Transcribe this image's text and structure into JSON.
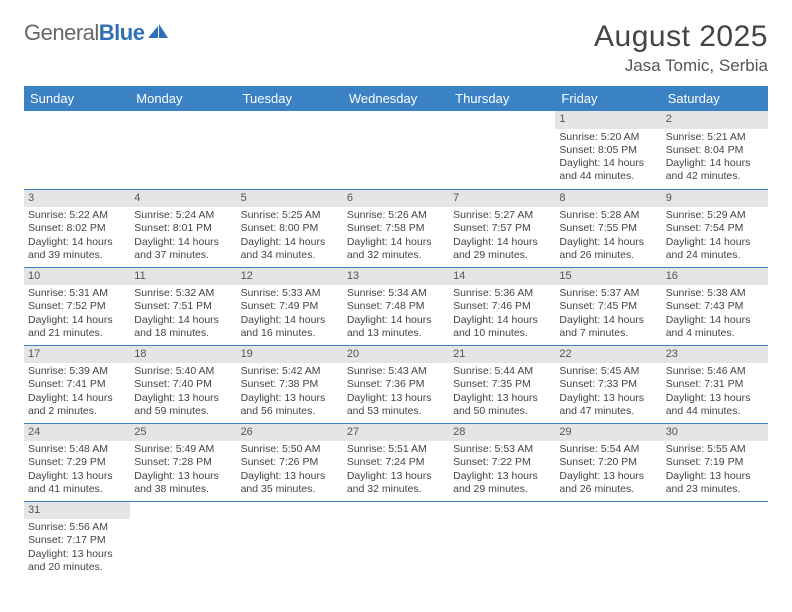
{
  "logo": {
    "text1": "General",
    "text2": "Blue"
  },
  "title": "August 2025",
  "location": "Jasa Tomic, Serbia",
  "colors": {
    "header_bg": "#3b82c4",
    "header_text": "#ffffff",
    "daynum_bg": "#e5e5e5",
    "border": "#3b82c4",
    "logo_blue": "#2e6fb5",
    "text": "#444444"
  },
  "weekdays": [
    "Sunday",
    "Monday",
    "Tuesday",
    "Wednesday",
    "Thursday",
    "Friday",
    "Saturday"
  ],
  "grid": [
    [
      null,
      null,
      null,
      null,
      null,
      {
        "n": "1",
        "sr": "Sunrise: 5:20 AM",
        "ss": "Sunset: 8:05 PM",
        "d1": "Daylight: 14 hours",
        "d2": "and 44 minutes."
      },
      {
        "n": "2",
        "sr": "Sunrise: 5:21 AM",
        "ss": "Sunset: 8:04 PM",
        "d1": "Daylight: 14 hours",
        "d2": "and 42 minutes."
      }
    ],
    [
      {
        "n": "3",
        "sr": "Sunrise: 5:22 AM",
        "ss": "Sunset: 8:02 PM",
        "d1": "Daylight: 14 hours",
        "d2": "and 39 minutes."
      },
      {
        "n": "4",
        "sr": "Sunrise: 5:24 AM",
        "ss": "Sunset: 8:01 PM",
        "d1": "Daylight: 14 hours",
        "d2": "and 37 minutes."
      },
      {
        "n": "5",
        "sr": "Sunrise: 5:25 AM",
        "ss": "Sunset: 8:00 PM",
        "d1": "Daylight: 14 hours",
        "d2": "and 34 minutes."
      },
      {
        "n": "6",
        "sr": "Sunrise: 5:26 AM",
        "ss": "Sunset: 7:58 PM",
        "d1": "Daylight: 14 hours",
        "d2": "and 32 minutes."
      },
      {
        "n": "7",
        "sr": "Sunrise: 5:27 AM",
        "ss": "Sunset: 7:57 PM",
        "d1": "Daylight: 14 hours",
        "d2": "and 29 minutes."
      },
      {
        "n": "8",
        "sr": "Sunrise: 5:28 AM",
        "ss": "Sunset: 7:55 PM",
        "d1": "Daylight: 14 hours",
        "d2": "and 26 minutes."
      },
      {
        "n": "9",
        "sr": "Sunrise: 5:29 AM",
        "ss": "Sunset: 7:54 PM",
        "d1": "Daylight: 14 hours",
        "d2": "and 24 minutes."
      }
    ],
    [
      {
        "n": "10",
        "sr": "Sunrise: 5:31 AM",
        "ss": "Sunset: 7:52 PM",
        "d1": "Daylight: 14 hours",
        "d2": "and 21 minutes."
      },
      {
        "n": "11",
        "sr": "Sunrise: 5:32 AM",
        "ss": "Sunset: 7:51 PM",
        "d1": "Daylight: 14 hours",
        "d2": "and 18 minutes."
      },
      {
        "n": "12",
        "sr": "Sunrise: 5:33 AM",
        "ss": "Sunset: 7:49 PM",
        "d1": "Daylight: 14 hours",
        "d2": "and 16 minutes."
      },
      {
        "n": "13",
        "sr": "Sunrise: 5:34 AM",
        "ss": "Sunset: 7:48 PM",
        "d1": "Daylight: 14 hours",
        "d2": "and 13 minutes."
      },
      {
        "n": "14",
        "sr": "Sunrise: 5:36 AM",
        "ss": "Sunset: 7:46 PM",
        "d1": "Daylight: 14 hours",
        "d2": "and 10 minutes."
      },
      {
        "n": "15",
        "sr": "Sunrise: 5:37 AM",
        "ss": "Sunset: 7:45 PM",
        "d1": "Daylight: 14 hours",
        "d2": "and 7 minutes."
      },
      {
        "n": "16",
        "sr": "Sunrise: 5:38 AM",
        "ss": "Sunset: 7:43 PM",
        "d1": "Daylight: 14 hours",
        "d2": "and 4 minutes."
      }
    ],
    [
      {
        "n": "17",
        "sr": "Sunrise: 5:39 AM",
        "ss": "Sunset: 7:41 PM",
        "d1": "Daylight: 14 hours",
        "d2": "and 2 minutes."
      },
      {
        "n": "18",
        "sr": "Sunrise: 5:40 AM",
        "ss": "Sunset: 7:40 PM",
        "d1": "Daylight: 13 hours",
        "d2": "and 59 minutes."
      },
      {
        "n": "19",
        "sr": "Sunrise: 5:42 AM",
        "ss": "Sunset: 7:38 PM",
        "d1": "Daylight: 13 hours",
        "d2": "and 56 minutes."
      },
      {
        "n": "20",
        "sr": "Sunrise: 5:43 AM",
        "ss": "Sunset: 7:36 PM",
        "d1": "Daylight: 13 hours",
        "d2": "and 53 minutes."
      },
      {
        "n": "21",
        "sr": "Sunrise: 5:44 AM",
        "ss": "Sunset: 7:35 PM",
        "d1": "Daylight: 13 hours",
        "d2": "and 50 minutes."
      },
      {
        "n": "22",
        "sr": "Sunrise: 5:45 AM",
        "ss": "Sunset: 7:33 PM",
        "d1": "Daylight: 13 hours",
        "d2": "and 47 minutes."
      },
      {
        "n": "23",
        "sr": "Sunrise: 5:46 AM",
        "ss": "Sunset: 7:31 PM",
        "d1": "Daylight: 13 hours",
        "d2": "and 44 minutes."
      }
    ],
    [
      {
        "n": "24",
        "sr": "Sunrise: 5:48 AM",
        "ss": "Sunset: 7:29 PM",
        "d1": "Daylight: 13 hours",
        "d2": "and 41 minutes."
      },
      {
        "n": "25",
        "sr": "Sunrise: 5:49 AM",
        "ss": "Sunset: 7:28 PM",
        "d1": "Daylight: 13 hours",
        "d2": "and 38 minutes."
      },
      {
        "n": "26",
        "sr": "Sunrise: 5:50 AM",
        "ss": "Sunset: 7:26 PM",
        "d1": "Daylight: 13 hours",
        "d2": "and 35 minutes."
      },
      {
        "n": "27",
        "sr": "Sunrise: 5:51 AM",
        "ss": "Sunset: 7:24 PM",
        "d1": "Daylight: 13 hours",
        "d2": "and 32 minutes."
      },
      {
        "n": "28",
        "sr": "Sunrise: 5:53 AM",
        "ss": "Sunset: 7:22 PM",
        "d1": "Daylight: 13 hours",
        "d2": "and 29 minutes."
      },
      {
        "n": "29",
        "sr": "Sunrise: 5:54 AM",
        "ss": "Sunset: 7:20 PM",
        "d1": "Daylight: 13 hours",
        "d2": "and 26 minutes."
      },
      {
        "n": "30",
        "sr": "Sunrise: 5:55 AM",
        "ss": "Sunset: 7:19 PM",
        "d1": "Daylight: 13 hours",
        "d2": "and 23 minutes."
      }
    ],
    [
      {
        "n": "31",
        "sr": "Sunrise: 5:56 AM",
        "ss": "Sunset: 7:17 PM",
        "d1": "Daylight: 13 hours",
        "d2": "and 20 minutes."
      },
      null,
      null,
      null,
      null,
      null,
      null
    ]
  ]
}
